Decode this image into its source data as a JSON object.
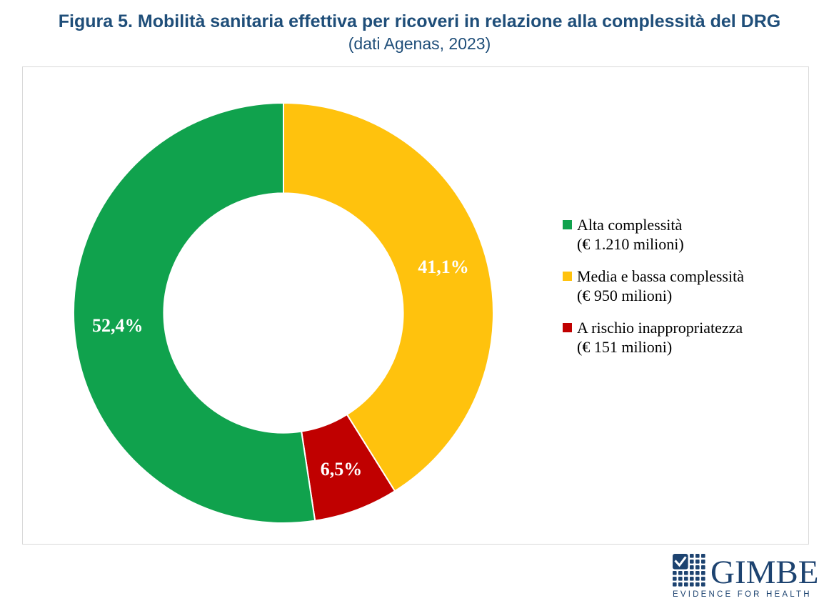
{
  "title": {
    "line1": "Figura 5. Mobilità sanitaria effettiva per ricoveri in relazione alla complessità del DRG",
    "line2": "(dati Agenas, 2023)",
    "color": "#1F4E79"
  },
  "chart_data": {
    "type": "pie",
    "variant": "donut",
    "title": "Figura 5. Mobilità sanitaria effettiva per ricoveri in relazione alla complessità del DRG",
    "subtitle": "(dati Agenas, 2023)",
    "source": "dati Agenas, 2023",
    "direction": "clockwise",
    "start_angle_deg": 0,
    "inner_radius_ratio": 0.57,
    "grid": false,
    "legend_position": "right",
    "slices": [
      {
        "name": "Media e bassa complessità",
        "euro_millions": 950,
        "value_label": "(€ 950 milioni)",
        "percent": 41.1,
        "percent_display": "41,1%",
        "color": "#FFC20D"
      },
      {
        "name": "A rischio inappropriatezza",
        "euro_millions": 151,
        "value_label": "(€ 151 milioni)",
        "percent": 6.5,
        "percent_display": "6,5%",
        "color": "#C00000"
      },
      {
        "name": "Alta complessità",
        "euro_millions": 1210,
        "value_label": "(€ 1.210 milioni)",
        "percent": 52.4,
        "percent_display": "52,4%",
        "color": "#10A24D"
      }
    ]
  },
  "legend": {
    "items": [
      {
        "label_line1": "Alta complessità",
        "label_line2": "(€ 1.210 milioni)",
        "color": "#10A24D"
      },
      {
        "label_line1": "Media e bassa complessità",
        "label_line2": "(€ 950 milioni)",
        "color": "#FFC20D"
      },
      {
        "label_line1": "A rischio inappropriatezza",
        "label_line2": "(€ 151 milioni)",
        "color": "#C00000"
      }
    ]
  },
  "logo": {
    "word": "GIMBE",
    "tagline": "EVIDENCE FOR HEALTH",
    "color": "#1D4370"
  }
}
